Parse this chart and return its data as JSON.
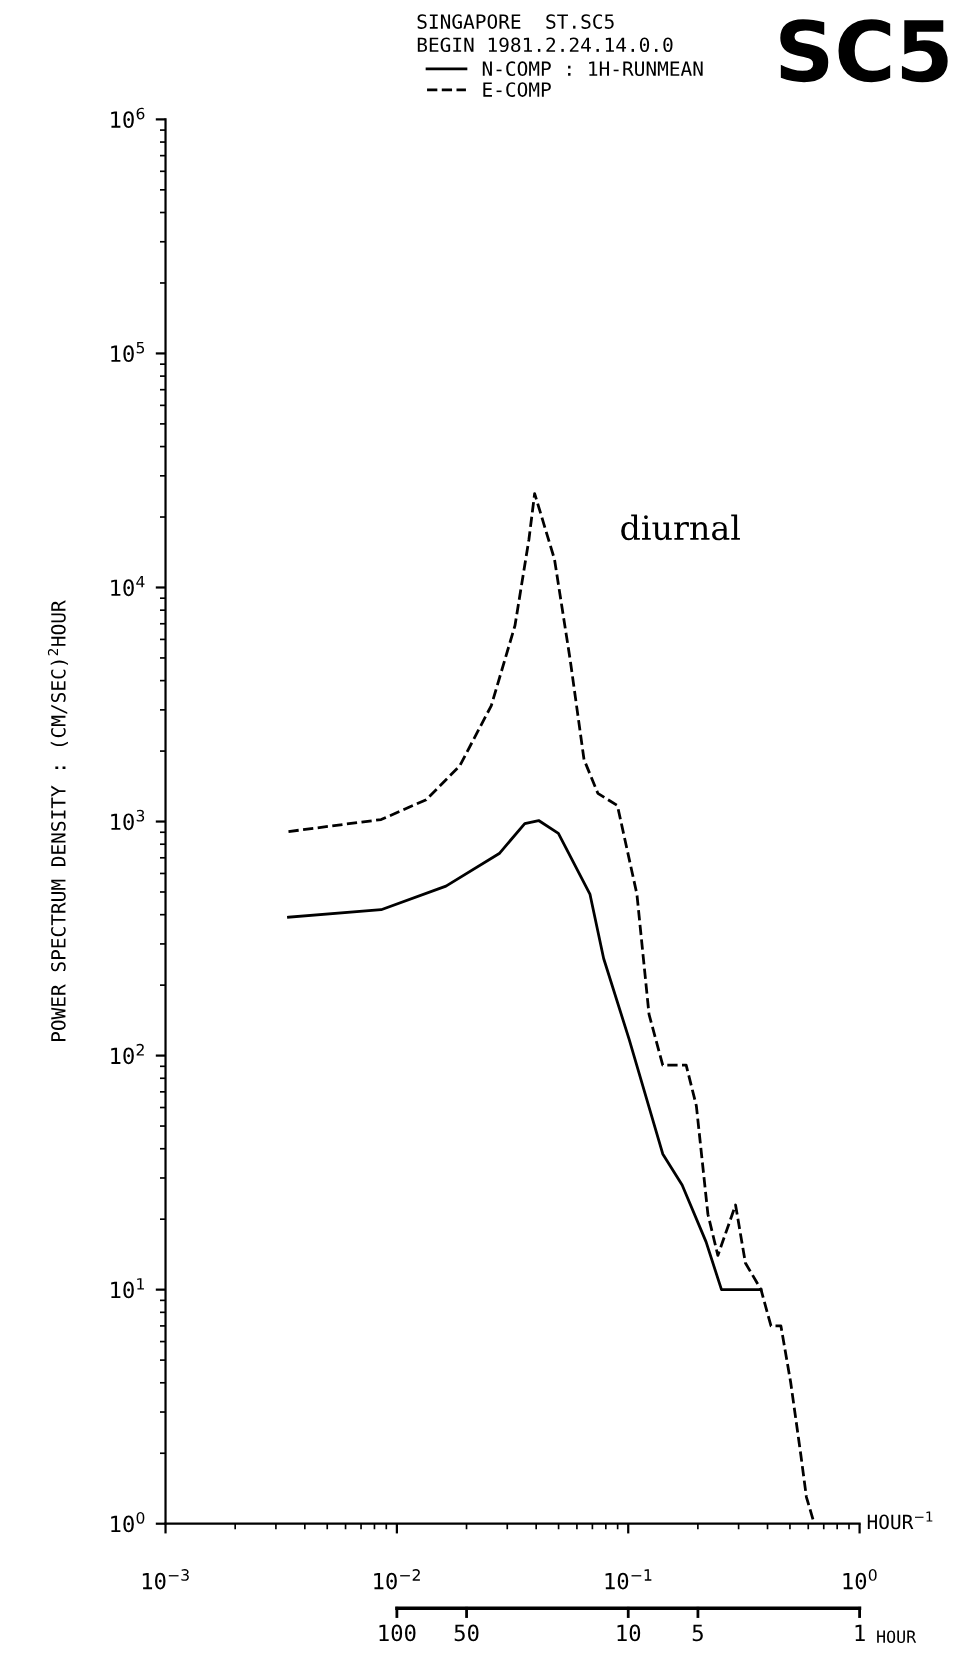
{
  "chart_data": {
    "type": "line",
    "title": "SINGAPORE  ST.SC5",
    "subtitle": "BEGIN 1981.2.24.14.0.0",
    "xlabel": "HOUR$^{−1}$",
    "ylabel": "POWER SPECTRUM DENSITY : (CM/SEC)$^{2}$HOUR",
    "annotations": [
      "SC5",
      "diurnal",
      "100",
      "50",
      "10",
      "5",
      "1",
      "HOUR"
    ],
    "log": "xy",
    "xlim": [
      0.001,
      1
    ],
    "ylim": [
      1,
      1000000
    ],
    "xticks": [
      {
        "value": 0.001,
        "label": "10$^{−3}$"
      },
      {
        "value": 0.01,
        "label": "10$^{−2}$"
      },
      {
        "value": 0.1,
        "label": "10$^{−1}$"
      },
      {
        "value": 1,
        "label": "10$^{0}$"
      }
    ],
    "yticks": [
      {
        "value": 1,
        "label": "10$^{0}$"
      },
      {
        "value": 10,
        "label": "10$^{1}$"
      },
      {
        "value": 100,
        "label": "10$^{2}$"
      },
      {
        "value": 1000,
        "label": "10$^{3}$"
      },
      {
        "value": 10000,
        "label": "10$^{4}$"
      },
      {
        "value": 100000,
        "label": "10$^{5}$"
      },
      {
        "value": 1000000,
        "label": "10$^{6}$"
      }
    ],
    "grid": false,
    "legend": "top",
    "marker": "none",
    "series": [
      {
        "name": "N-COMP : 1H-RUNMEAN",
        "color": "#000000",
        "line_style": "solid",
        "x": [
          0.0034,
          0.00855,
          0.0163,
          0.0277,
          0.0357,
          0.041,
          0.0499,
          0.0683,
          0.0783,
          0.101,
          0.141,
          0.171,
          0.217,
          0.253,
          0.308,
          0.375
        ],
        "values": [
          390,
          420,
          530,
          730,
          980,
          1010,
          890,
          490,
          260,
          117,
          38,
          28,
          16,
          10,
          10,
          10
        ]
      },
      {
        "name": "E-COMP",
        "color": "#000000",
        "line_style": "dashed",
        "x": [
          0.0034,
          0.00855,
          0.0134,
          0.0187,
          0.0256,
          0.0324,
          0.0372,
          0.0394,
          0.048,
          0.0561,
          0.0644,
          0.0739,
          0.0898,
          0.109,
          0.123,
          0.141,
          0.178,
          0.197,
          0.221,
          0.244,
          0.291,
          0.321,
          0.375,
          0.414,
          0.457,
          0.504,
          0.556,
          0.589,
          0.637
        ],
        "values": [
          906,
          1020,
          1240,
          1730,
          3130,
          6880,
          16000,
          25200,
          13200,
          4920,
          1840,
          1320,
          1170,
          490,
          150,
          91,
          91,
          61,
          21,
          14,
          23,
          13,
          10,
          7,
          7,
          4,
          2,
          1.3,
          1
        ]
      }
    ]
  }
}
